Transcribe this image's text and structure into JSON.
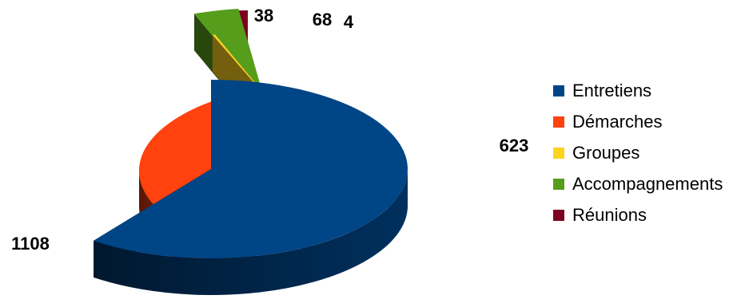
{
  "chart_data": {
    "type": "pie",
    "style": "3d-exploded",
    "categories": [
      "Entretiens",
      "Démarches",
      "Groupes",
      "Accompagnements",
      "Réunions"
    ],
    "values": [
      1108,
      623,
      4,
      68,
      38
    ],
    "colors": [
      "#004586",
      "#ff420e",
      "#ffd320",
      "#579d1c",
      "#7e0021"
    ],
    "legend_position": "right",
    "title": ""
  },
  "legend": {
    "items": [
      {
        "label": "Entretiens",
        "color": "#004586"
      },
      {
        "label": "Démarches",
        "color": "#ff420e"
      },
      {
        "label": "Groupes",
        "color": "#ffd320"
      },
      {
        "label": "Accompagnements",
        "color": "#579d1c"
      },
      {
        "label": "Réunions",
        "color": "#7e0021"
      }
    ]
  }
}
